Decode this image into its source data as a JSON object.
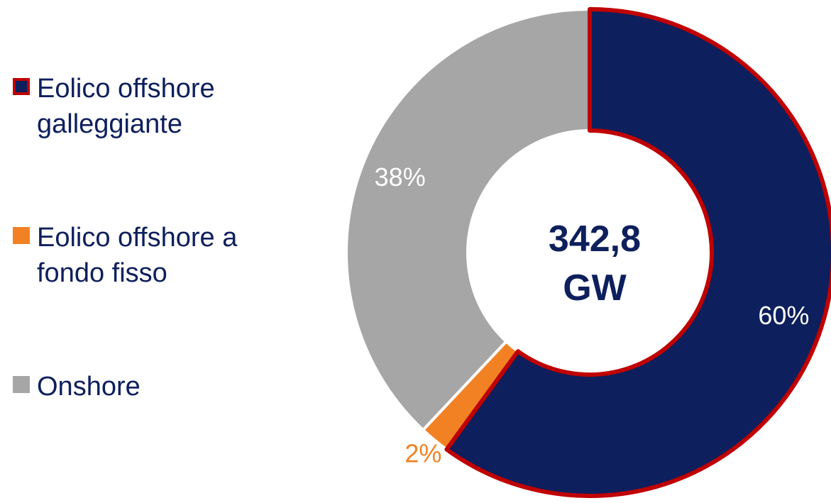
{
  "chart_data": {
    "type": "pie",
    "subtype": "donut",
    "center_label": {
      "value": "342,8",
      "unit": "GW"
    },
    "slices": [
      {
        "name": "Eolico offshore galleggiante",
        "value": 60,
        "label": "60%",
        "color": "#0d1f5c",
        "edge": "#c00000",
        "label_color": "#0d1f5c"
      },
      {
        "name": "Eolico offshore a fondo fisso",
        "value": 2,
        "label": "2%",
        "color": "#f28124",
        "edge": "#ffffff",
        "label_color": "#f28124"
      },
      {
        "name": "Onshore",
        "value": 38,
        "label": "38%",
        "color": "#a6a6a6",
        "edge": "#ffffff",
        "label_color": "#ffffff"
      }
    ],
    "legend_position": "left",
    "colors": {
      "text": "#0d1f5c",
      "highlight_edge": "#c00000"
    }
  }
}
